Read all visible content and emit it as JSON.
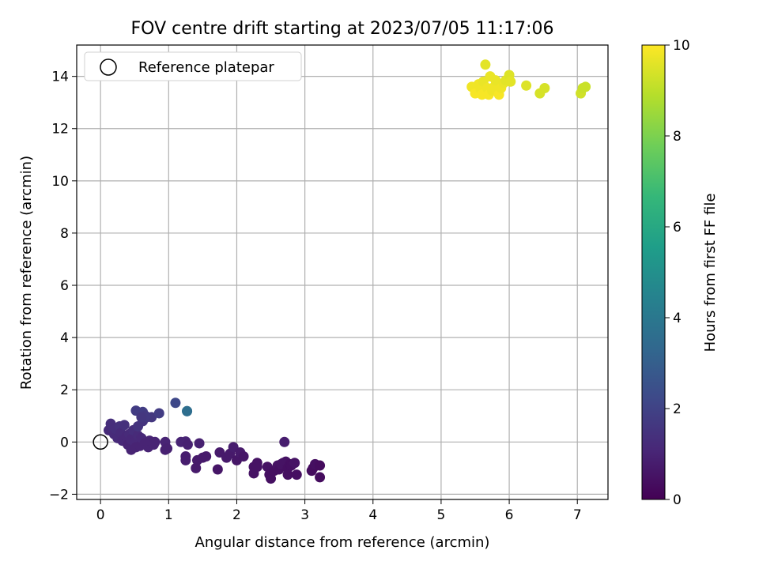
{
  "chart_data": {
    "type": "scatter",
    "title": "FOV centre drift starting at 2023/07/05 11:17:06",
    "xlabel": "Angular distance from reference (arcmin)",
    "ylabel": "Rotation from reference (arcmin)",
    "xlim": [
      -0.35,
      7.45
    ],
    "ylim": [
      -2.2,
      15.2
    ],
    "xticks": [
      0,
      1,
      2,
      3,
      4,
      5,
      6,
      7
    ],
    "yticks": [
      -2,
      0,
      2,
      4,
      6,
      8,
      10,
      12,
      14
    ],
    "grid": true,
    "legend": {
      "placement": "top-left",
      "entries": [
        "Reference platepar"
      ]
    },
    "reference_point": {
      "x": 0,
      "y": 0
    },
    "colorbar": {
      "label": "Hours from first FF file",
      "range": [
        0,
        10
      ],
      "ticks": [
        0,
        2,
        4,
        6,
        8,
        10
      ],
      "colormap": "viridis",
      "stops": [
        "#440154",
        "#482878",
        "#3e4989",
        "#31688e",
        "#26828e",
        "#1f9e89",
        "#35b779",
        "#6ece58",
        "#b5de2b",
        "#fde725"
      ]
    },
    "points": [
      {
        "x": 0.12,
        "y": 0.45,
        "h": 1.2
      },
      {
        "x": 0.15,
        "y": 0.7,
        "h": 1.3
      },
      {
        "x": 0.18,
        "y": 0.55,
        "h": 1.3
      },
      {
        "x": 0.2,
        "y": 0.3,
        "h": 1.2
      },
      {
        "x": 0.22,
        "y": 0.5,
        "h": 1.3
      },
      {
        "x": 0.25,
        "y": 0.15,
        "h": 1.2
      },
      {
        "x": 0.28,
        "y": 0.6,
        "h": 1.4
      },
      {
        "x": 0.3,
        "y": 0.35,
        "h": 1.2
      },
      {
        "x": 0.32,
        "y": 0.05,
        "h": 1.1
      },
      {
        "x": 0.35,
        "y": 0.65,
        "h": 1.4
      },
      {
        "x": 0.38,
        "y": 0.2,
        "h": 1.1
      },
      {
        "x": 0.4,
        "y": -0.1,
        "h": 1.0
      },
      {
        "x": 0.42,
        "y": 0.3,
        "h": 1.2
      },
      {
        "x": 0.45,
        "y": -0.3,
        "h": 1.0
      },
      {
        "x": 0.45,
        "y": 0.1,
        "h": 1.1
      },
      {
        "x": 0.48,
        "y": 0.45,
        "h": 1.3
      },
      {
        "x": 0.5,
        "y": 0.0,
        "h": 1.1
      },
      {
        "x": 0.52,
        "y": -0.2,
        "h": 1.0
      },
      {
        "x": 0.55,
        "y": 0.25,
        "h": 1.2
      },
      {
        "x": 0.55,
        "y": 0.6,
        "h": 1.5
      },
      {
        "x": 0.58,
        "y": -0.15,
        "h": 1.0
      },
      {
        "x": 0.6,
        "y": 0.15,
        "h": 1.1
      },
      {
        "x": 0.62,
        "y": 0.8,
        "h": 1.5
      },
      {
        "x": 0.65,
        "y": -0.05,
        "h": 1.0
      },
      {
        "x": 0.68,
        "y": 0.95,
        "h": 1.6
      },
      {
        "x": 0.7,
        "y": -0.2,
        "h": 1.0
      },
      {
        "x": 0.72,
        "y": 0.05,
        "h": 1.0
      },
      {
        "x": 0.75,
        "y": 0.95,
        "h": 1.6
      },
      {
        "x": 0.78,
        "y": -0.1,
        "h": 1.0
      },
      {
        "x": 0.8,
        "y": 0.0,
        "h": 1.0
      },
      {
        "x": 0.52,
        "y": 1.2,
        "h": 1.8
      },
      {
        "x": 0.62,
        "y": 1.15,
        "h": 1.8
      },
      {
        "x": 0.66,
        "y": 1.0,
        "h": 1.7
      },
      {
        "x": 0.86,
        "y": 1.1,
        "h": 1.8
      },
      {
        "x": 0.6,
        "y": 0.95,
        "h": 1.6
      },
      {
        "x": 0.95,
        "y": 0.0,
        "h": 1.0
      },
      {
        "x": 0.95,
        "y": -0.3,
        "h": 0.9
      },
      {
        "x": 0.98,
        "y": -0.25,
        "h": 0.9
      },
      {
        "x": 1.1,
        "y": 1.5,
        "h": 2.2
      },
      {
        "x": 1.27,
        "y": 1.18,
        "h": 3.4
      },
      {
        "x": 1.27,
        "y": 1.18,
        "h": 3.6
      },
      {
        "x": 1.18,
        "y": 0.0,
        "h": 1.0
      },
      {
        "x": 1.25,
        "y": 0.02,
        "h": 1.0
      },
      {
        "x": 1.25,
        "y": -0.55,
        "h": 0.8
      },
      {
        "x": 1.25,
        "y": -0.7,
        "h": 0.8
      },
      {
        "x": 1.28,
        "y": -0.1,
        "h": 0.9
      },
      {
        "x": 1.4,
        "y": -1.0,
        "h": 0.7
      },
      {
        "x": 1.42,
        "y": -0.7,
        "h": 0.7
      },
      {
        "x": 1.45,
        "y": -0.05,
        "h": 0.9
      },
      {
        "x": 1.5,
        "y": -0.6,
        "h": 0.7
      },
      {
        "x": 1.55,
        "y": -0.55,
        "h": 0.7
      },
      {
        "x": 1.72,
        "y": -1.05,
        "h": 0.6
      },
      {
        "x": 1.75,
        "y": -0.4,
        "h": 0.7
      },
      {
        "x": 1.85,
        "y": -0.6,
        "h": 0.7
      },
      {
        "x": 1.9,
        "y": -0.45,
        "h": 0.7
      },
      {
        "x": 1.95,
        "y": -0.2,
        "h": 0.8
      },
      {
        "x": 2.0,
        "y": -0.7,
        "h": 0.6
      },
      {
        "x": 2.05,
        "y": -0.4,
        "h": 0.7
      },
      {
        "x": 2.1,
        "y": -0.55,
        "h": 0.6
      },
      {
        "x": 2.25,
        "y": -0.95,
        "h": 0.5
      },
      {
        "x": 2.25,
        "y": -1.2,
        "h": 0.5
      },
      {
        "x": 2.3,
        "y": -0.8,
        "h": 0.5
      },
      {
        "x": 2.3,
        "y": -0.95,
        "h": 0.5
      },
      {
        "x": 2.45,
        "y": -0.95,
        "h": 0.5
      },
      {
        "x": 2.48,
        "y": -1.25,
        "h": 0.4
      },
      {
        "x": 2.5,
        "y": -1.4,
        "h": 0.4
      },
      {
        "x": 2.55,
        "y": -1.1,
        "h": 0.4
      },
      {
        "x": 2.6,
        "y": -0.9,
        "h": 0.5
      },
      {
        "x": 2.62,
        "y": -1.05,
        "h": 0.4
      },
      {
        "x": 2.65,
        "y": -0.85,
        "h": 0.5
      },
      {
        "x": 2.68,
        "y": -0.8,
        "h": 0.5
      },
      {
        "x": 2.7,
        "y": 0.0,
        "h": 0.8
      },
      {
        "x": 2.72,
        "y": -0.75,
        "h": 0.5
      },
      {
        "x": 2.75,
        "y": -1.0,
        "h": 0.4
      },
      {
        "x": 2.75,
        "y": -1.25,
        "h": 0.4
      },
      {
        "x": 2.78,
        "y": -0.85,
        "h": 0.4
      },
      {
        "x": 2.8,
        "y": -0.9,
        "h": 0.4
      },
      {
        "x": 2.85,
        "y": -0.8,
        "h": 0.5
      },
      {
        "x": 2.88,
        "y": -1.25,
        "h": 0.4
      },
      {
        "x": 3.1,
        "y": -1.1,
        "h": 0.3
      },
      {
        "x": 3.12,
        "y": -1.0,
        "h": 0.3
      },
      {
        "x": 3.15,
        "y": -0.85,
        "h": 0.4
      },
      {
        "x": 3.22,
        "y": -0.9,
        "h": 0.3
      },
      {
        "x": 3.22,
        "y": -1.35,
        "h": 0.3
      },
      {
        "x": 5.45,
        "y": 13.6,
        "h": 9.8
      },
      {
        "x": 5.5,
        "y": 13.35,
        "h": 9.9
      },
      {
        "x": 5.55,
        "y": 13.7,
        "h": 9.8
      },
      {
        "x": 5.58,
        "y": 13.5,
        "h": 9.8
      },
      {
        "x": 5.6,
        "y": 13.3,
        "h": 9.9
      },
      {
        "x": 5.62,
        "y": 13.8,
        "h": 9.7
      },
      {
        "x": 5.65,
        "y": 14.45,
        "h": 9.6
      },
      {
        "x": 5.68,
        "y": 13.55,
        "h": 9.8
      },
      {
        "x": 5.7,
        "y": 13.3,
        "h": 9.9
      },
      {
        "x": 5.72,
        "y": 14.0,
        "h": 9.7
      },
      {
        "x": 5.75,
        "y": 13.45,
        "h": 9.8
      },
      {
        "x": 5.78,
        "y": 13.6,
        "h": 9.8
      },
      {
        "x": 5.8,
        "y": 13.85,
        "h": 9.7
      },
      {
        "x": 5.85,
        "y": 13.3,
        "h": 9.9
      },
      {
        "x": 5.88,
        "y": 13.55,
        "h": 9.8
      },
      {
        "x": 5.92,
        "y": 13.75,
        "h": 9.7
      },
      {
        "x": 5.95,
        "y": 13.85,
        "h": 9.6
      },
      {
        "x": 6.0,
        "y": 14.05,
        "h": 9.5
      },
      {
        "x": 6.02,
        "y": 13.8,
        "h": 9.6
      },
      {
        "x": 6.25,
        "y": 13.65,
        "h": 9.5
      },
      {
        "x": 6.45,
        "y": 13.35,
        "h": 9.4
      },
      {
        "x": 6.52,
        "y": 13.55,
        "h": 9.4
      },
      {
        "x": 7.05,
        "y": 13.35,
        "h": 9.3
      },
      {
        "x": 7.08,
        "y": 13.55,
        "h": 9.2
      },
      {
        "x": 7.12,
        "y": 13.6,
        "h": 9.2
      }
    ]
  }
}
